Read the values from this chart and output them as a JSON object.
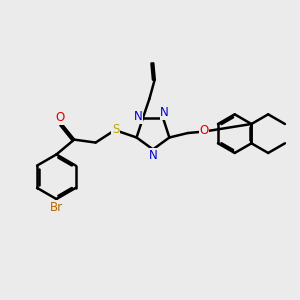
{
  "bg_color": "#ebebeb",
  "bond_color": "#000000",
  "bond_width": 1.8,
  "dbo": 0.06,
  "atom_colors": {
    "N": "#0000cc",
    "O": "#dd0000",
    "S": "#bbaa00",
    "Br": "#bb6600",
    "C": "#000000"
  },
  "fs": 8.5
}
